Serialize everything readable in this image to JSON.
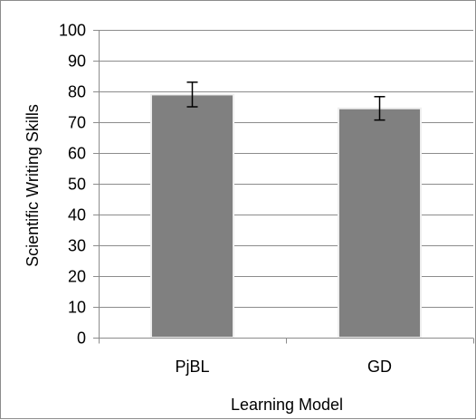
{
  "chart_data": {
    "type": "bar",
    "title": "",
    "xlabel": "Learning Model",
    "ylabel": "Scientific Writing Skills",
    "categories": [
      "PjBL",
      "GD"
    ],
    "values": [
      79,
      74.5
    ],
    "error": [
      4,
      3.8
    ],
    "ylim": [
      0,
      100
    ],
    "yticks": [
      0,
      10,
      20,
      30,
      40,
      50,
      60,
      70,
      80,
      90,
      100
    ],
    "grid": true,
    "legend": "none",
    "bar_color": "#808080",
    "bar_edge_color": "#f0f0f0",
    "grid_color": "#8c8c8c"
  }
}
